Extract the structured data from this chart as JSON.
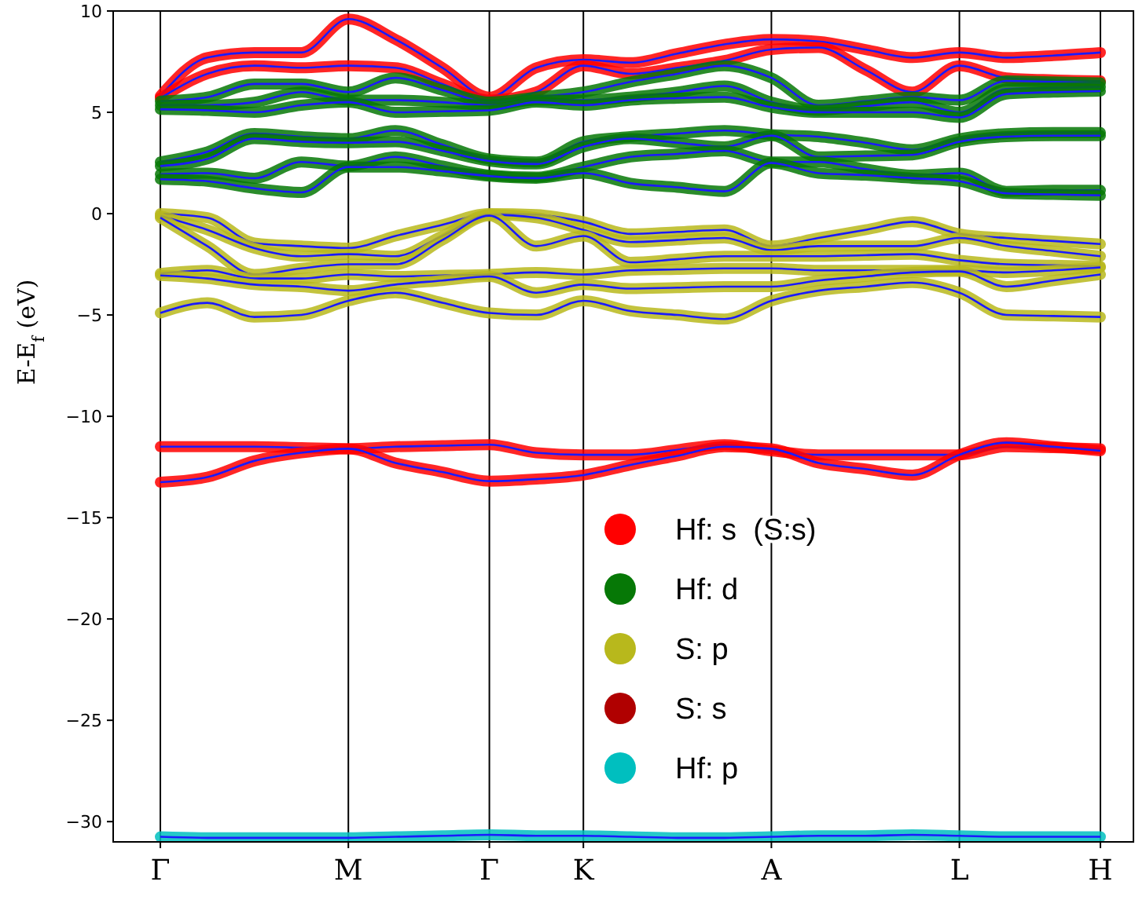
{
  "chart_data": {
    "type": "line",
    "ylabel": "E-E$_{f}$ (eV)",
    "categories": [
      "Γ",
      null,
      null,
      null,
      "M",
      null,
      null,
      "Γ",
      null,
      "K",
      null,
      null,
      null,
      "A",
      null,
      null,
      null,
      "L",
      null,
      null,
      "H"
    ],
    "ylim": [
      -31,
      10
    ],
    "yticks": [
      10,
      5,
      0,
      -5,
      -10,
      -15,
      -20,
      -25,
      -30
    ],
    "legend": "bottom",
    "grid": "x",
    "line_style": "solid",
    "series": [
      {
        "name": "Hf: s  (S:s)",
        "color": "#ff0000",
        "values": [
          5.8,
          7.7,
          7.95,
          7.95,
          9.6,
          8.6,
          7.2,
          5.75,
          7.2,
          7.6,
          7.45,
          7.9,
          8.35,
          8.6,
          8.5,
          8.1,
          7.7,
          7.95,
          7.7,
          7.8,
          7.95
        ]
      },
      {
        "color": "#ff0000",
        "values": [
          5.7,
          6.9,
          7.3,
          7.2,
          7.3,
          7.2,
          6.4,
          5.6,
          6.0,
          7.3,
          6.9,
          7.2,
          7.55,
          8.1,
          8.2,
          7.1,
          6.0,
          7.3,
          6.7,
          6.6,
          6.55
        ]
      },
      {
        "color": "#ff0000",
        "values": [
          -11.5,
          -11.5,
          -11.5,
          -11.55,
          -11.6,
          -11.5,
          -11.45,
          -11.4,
          -11.8,
          -11.9,
          -11.9,
          -11.65,
          -11.4,
          -11.7,
          -11.9,
          -11.9,
          -11.9,
          -11.9,
          -11.5,
          -11.55,
          -11.6
        ]
      },
      {
        "color": "#ff0000",
        "values": [
          -13.25,
          -13.0,
          -12.2,
          -11.8,
          -11.6,
          -12.3,
          -12.75,
          -13.2,
          -13.1,
          -12.9,
          -12.4,
          -11.95,
          -11.5,
          -11.6,
          -12.3,
          -12.6,
          -12.9,
          -11.9,
          -11.3,
          -11.5,
          -11.7
        ]
      },
      {
        "name": "Hf: d",
        "color": "#067806",
        "values": [
          5.55,
          5.75,
          6.4,
          6.4,
          6.0,
          6.7,
          6.1,
          5.5,
          5.75,
          6.0,
          6.5,
          6.9,
          7.3,
          6.7,
          5.35,
          5.55,
          5.75,
          5.6,
          6.55,
          6.5,
          6.45
        ]
      },
      {
        "color": "#067806",
        "values": [
          5.35,
          5.35,
          5.5,
          6.0,
          5.6,
          5.6,
          5.5,
          5.35,
          5.6,
          5.6,
          5.75,
          6.0,
          6.3,
          5.5,
          5.1,
          5.3,
          5.5,
          5.0,
          6.15,
          6.2,
          6.25
        ]
      },
      {
        "color": "#067806",
        "values": [
          5.15,
          5.1,
          5.0,
          5.35,
          5.5,
          5.0,
          5.05,
          5.1,
          5.5,
          5.35,
          5.6,
          5.7,
          5.75,
          5.25,
          5.0,
          5.0,
          5.0,
          4.75,
          5.9,
          6.0,
          6.05
        ]
      },
      {
        "color": "#067806",
        "values": [
          2.55,
          3.05,
          3.95,
          3.8,
          3.7,
          4.1,
          3.4,
          2.7,
          2.55,
          3.55,
          3.8,
          3.95,
          4.1,
          3.9,
          3.8,
          3.5,
          3.15,
          3.7,
          3.95,
          4.0,
          4.0
        ]
      },
      {
        "color": "#067806",
        "values": [
          2.35,
          2.7,
          3.7,
          3.55,
          3.5,
          3.55,
          3.1,
          2.6,
          2.45,
          3.3,
          3.7,
          3.5,
          3.3,
          3.85,
          2.8,
          2.85,
          2.9,
          3.55,
          3.8,
          3.85,
          3.85
        ]
      },
      {
        "color": "#067806",
        "values": [
          1.95,
          2.0,
          1.75,
          2.55,
          2.35,
          2.8,
          2.35,
          1.9,
          1.8,
          2.3,
          2.8,
          2.95,
          3.1,
          2.55,
          2.55,
          2.2,
          1.9,
          2.0,
          1.1,
          1.15,
          1.15
        ]
      },
      {
        "color": "#067806",
        "values": [
          1.7,
          1.6,
          1.25,
          1.05,
          2.3,
          2.3,
          2.1,
          1.85,
          1.75,
          2.0,
          1.5,
          1.3,
          1.1,
          2.5,
          2.0,
          1.9,
          1.75,
          1.6,
          1.0,
          0.95,
          0.9
        ]
      },
      {
        "name": "S: p",
        "color": "#b8b81c",
        "values": [
          0,
          -0.2,
          -1.45,
          -1.6,
          -1.7,
          -1.1,
          -0.55,
          0,
          -0.05,
          -0.4,
          -1.0,
          -0.9,
          -0.8,
          -1.6,
          -1.2,
          -0.8,
          -0.4,
          -1.0,
          -1.2,
          -1.35,
          -1.5
        ]
      },
      {
        "color": "#b8b81c",
        "values": [
          -0.1,
          -0.8,
          -1.7,
          -2.1,
          -2.0,
          -2.1,
          -1.1,
          -0.05,
          -0.2,
          -0.8,
          -1.4,
          -1.3,
          -1.2,
          -1.8,
          -1.6,
          -1.6,
          -1.6,
          -1.2,
          -1.6,
          -1.85,
          -2.1
        ]
      },
      {
        "color": "#b8b81c",
        "values": [
          -0.2,
          -1.6,
          -3.0,
          -2.7,
          -2.5,
          -2.5,
          -1.3,
          -0.1,
          -1.6,
          -1.1,
          -2.4,
          -2.25,
          -2.1,
          -2.1,
          -2.1,
          -2.05,
          -2.0,
          -2.3,
          -2.5,
          -2.55,
          -2.6
        ]
      },
      {
        "color": "#b8b81c",
        "values": [
          -2.95,
          -2.8,
          -3.2,
          -3.2,
          -3.0,
          -3.1,
          -3.05,
          -3.0,
          -2.9,
          -3.0,
          -2.8,
          -2.75,
          -2.7,
          -2.7,
          -2.8,
          -2.8,
          -2.8,
          -2.8,
          -2.9,
          -2.8,
          -2.65
        ]
      },
      {
        "color": "#b8b81c",
        "values": [
          -3.05,
          -3.2,
          -3.5,
          -3.6,
          -3.8,
          -3.5,
          -3.3,
          -3.1,
          -3.9,
          -3.5,
          -3.7,
          -3.65,
          -3.6,
          -3.6,
          -3.3,
          -3.1,
          -2.9,
          -2.85,
          -3.6,
          -3.3,
          -3.0
        ]
      },
      {
        "color": "#b8b81c",
        "values": [
          -4.9,
          -4.4,
          -5.1,
          -5.0,
          -4.3,
          -3.9,
          -4.4,
          -4.9,
          -5.0,
          -4.3,
          -4.8,
          -5.0,
          -5.2,
          -4.3,
          -3.8,
          -3.6,
          -3.4,
          -3.9,
          -5.0,
          -5.05,
          -5.1
        ]
      },
      {
        "name": "S: s",
        "color": "#b00000",
        "values": [
          null,
          null,
          null,
          null,
          null,
          null,
          null,
          null,
          null,
          null,
          null,
          null,
          null,
          null,
          null,
          null,
          null,
          null,
          null,
          null,
          null
        ]
      },
      {
        "name": "Hf: p",
        "color": "#00bfbf",
        "values": [
          -30.75,
          -30.8,
          -30.8,
          -30.8,
          -30.8,
          -30.75,
          -30.7,
          -30.65,
          -30.7,
          -30.7,
          -30.75,
          -30.8,
          -30.8,
          -30.75,
          -30.7,
          -30.7,
          -30.65,
          -30.7,
          -30.75,
          -30.75,
          -30.75
        ]
      }
    ]
  }
}
